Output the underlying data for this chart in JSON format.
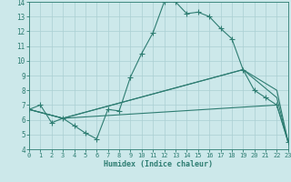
{
  "xlabel": "Humidex (Indice chaleur)",
  "xlim": [
    0,
    23
  ],
  "ylim": [
    4,
    14
  ],
  "xticks": [
    0,
    1,
    2,
    3,
    4,
    5,
    6,
    7,
    8,
    9,
    10,
    11,
    12,
    13,
    14,
    15,
    16,
    17,
    18,
    19,
    20,
    21,
    22,
    23
  ],
  "yticks": [
    4,
    5,
    6,
    7,
    8,
    9,
    10,
    11,
    12,
    13,
    14
  ],
  "bg_color": "#cce8ea",
  "grid_color": "#aacfd2",
  "line_color": "#2e7d72",
  "lines": [
    {
      "x": [
        0,
        1,
        2,
        3,
        4,
        5,
        6,
        7,
        8,
        9,
        10,
        11,
        12,
        13,
        14,
        15,
        16,
        17,
        18,
        19,
        20,
        21,
        22,
        23
      ],
      "y": [
        6.7,
        7.0,
        5.8,
        6.1,
        5.6,
        5.1,
        4.7,
        6.7,
        6.6,
        8.9,
        10.5,
        11.9,
        14.0,
        14.0,
        13.2,
        13.3,
        13.0,
        12.2,
        11.5,
        9.4,
        8.0,
        7.5,
        7.0,
        4.5
      ],
      "has_markers": true
    },
    {
      "x": [
        0,
        3,
        22,
        23
      ],
      "y": [
        6.7,
        6.1,
        7.0,
        4.5
      ],
      "has_markers": false
    },
    {
      "x": [
        0,
        3,
        19,
        22,
        23
      ],
      "y": [
        6.7,
        6.1,
        9.4,
        8.0,
        4.5
      ],
      "has_markers": false
    },
    {
      "x": [
        0,
        3,
        19,
        22,
        23
      ],
      "y": [
        6.7,
        6.1,
        9.4,
        7.5,
        4.5
      ],
      "has_markers": false
    }
  ]
}
